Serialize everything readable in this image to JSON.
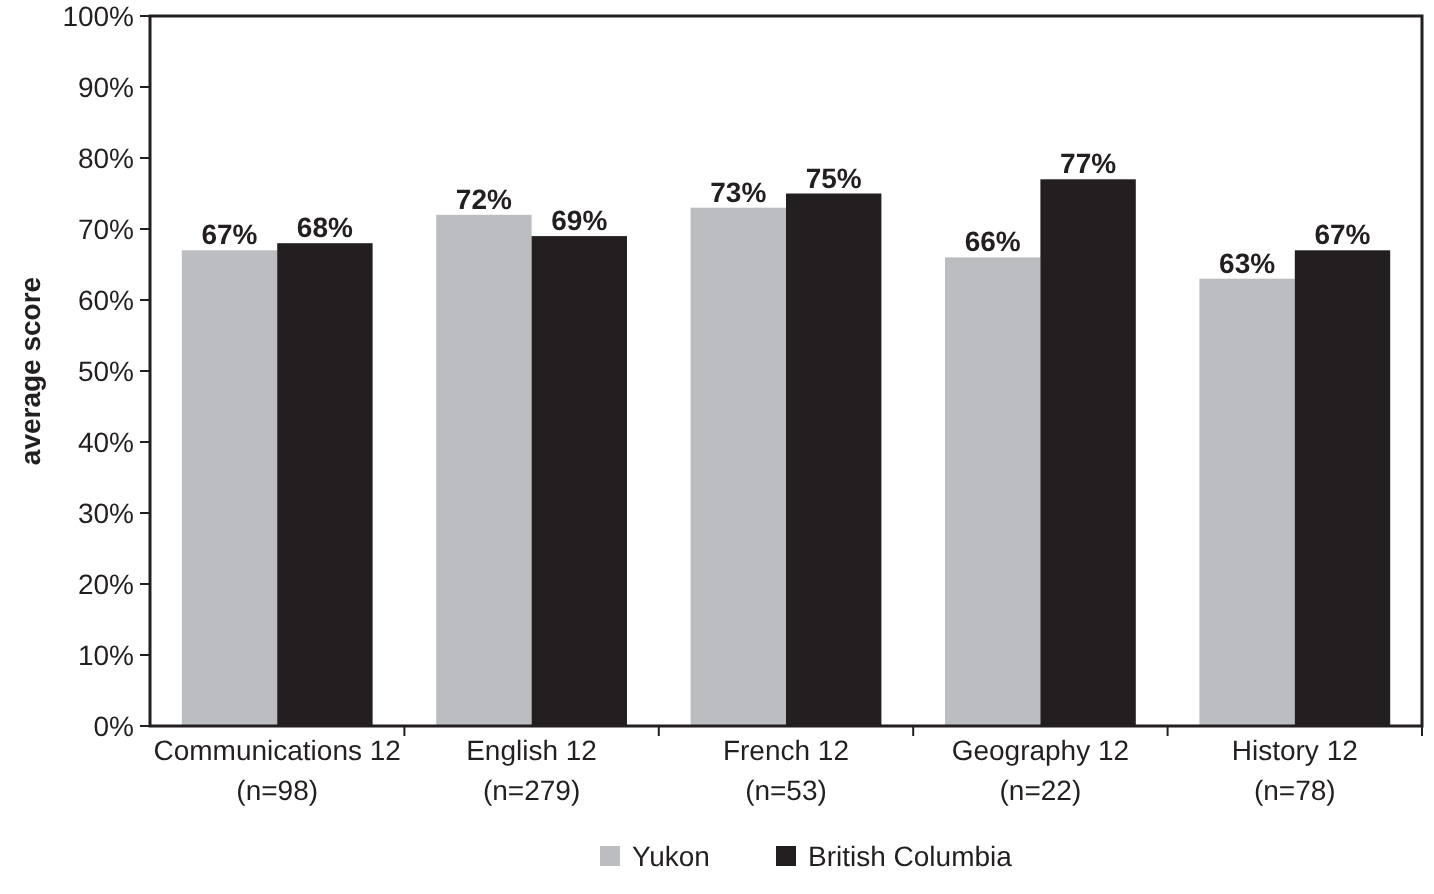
{
  "chart_data": {
    "type": "bar",
    "ylabel": "average score",
    "categories": [
      "Communications 12\n(n=98)",
      "English 12\n(n=279)",
      "French 12\n(n=53)",
      "Geography 12\n(n=22)",
      "History 12\n(n=78)"
    ],
    "series": [
      {
        "name": "Yukon",
        "color": "#bcbdc0",
        "values": [
          67,
          72,
          73,
          66,
          63
        ],
        "value_labels": [
          "67%",
          "72%",
          "73%",
          "66%",
          "63%"
        ]
      },
      {
        "name": "British Columbia",
        "color": "#231f20",
        "values": [
          68,
          69,
          75,
          77,
          67
        ],
        "value_labels": [
          "68%",
          "69%",
          "75%",
          "77%",
          "67%"
        ]
      }
    ],
    "ylim": [
      0,
      100
    ],
    "yticks": [
      {
        "value": 0,
        "label": "0%"
      },
      {
        "value": 10,
        "label": "10%"
      },
      {
        "value": 20,
        "label": "20%"
      },
      {
        "value": 30,
        "label": "30%"
      },
      {
        "value": 40,
        "label": "40%"
      },
      {
        "value": 50,
        "label": "50%"
      },
      {
        "value": 60,
        "label": "60%"
      },
      {
        "value": 70,
        "label": "70%"
      },
      {
        "value": 80,
        "label": "80%"
      },
      {
        "value": 90,
        "label": "90%"
      },
      {
        "value": 100,
        "label": "100%"
      }
    ],
    "grid": false,
    "legend": "bottom"
  }
}
